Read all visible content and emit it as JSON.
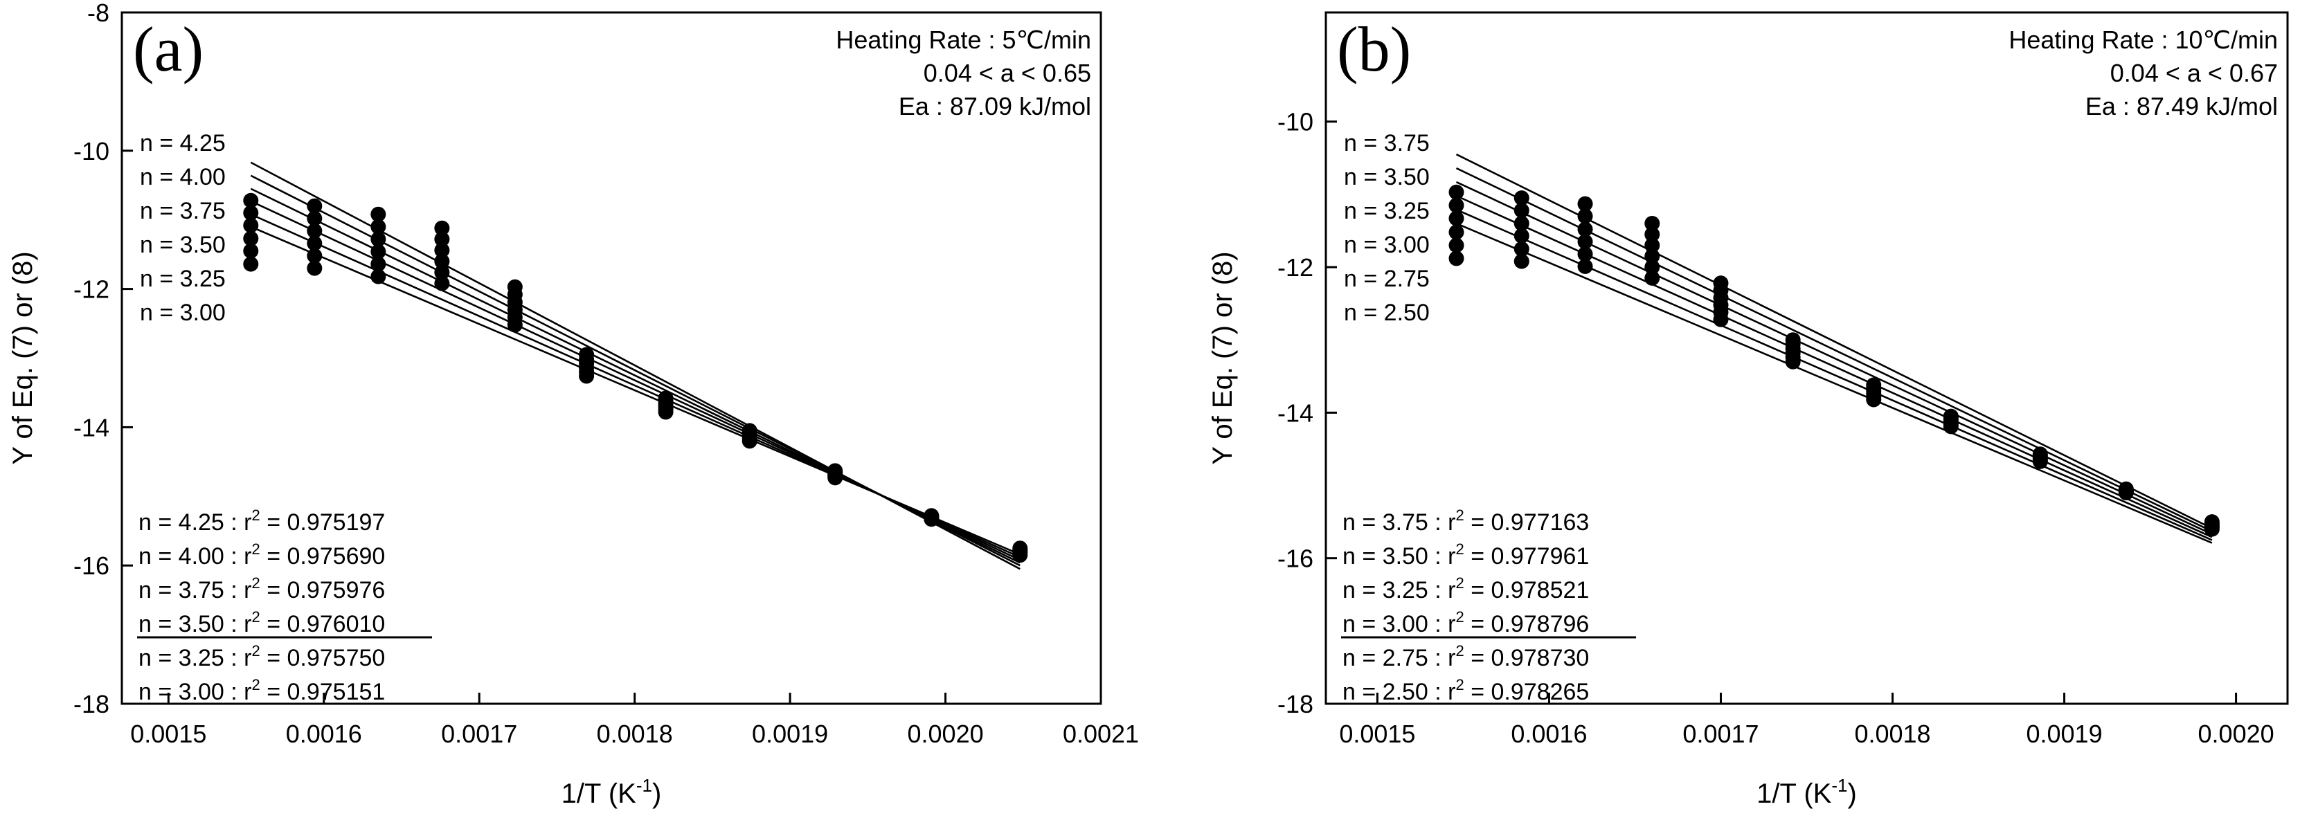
{
  "chart_data": [
    {
      "type": "scatter",
      "panel_label": "(a)",
      "xlabel": "1/T (K",
      "xlabel_sup": "-1",
      "xlabel_end": ")",
      "ylabel": "Y of Eq. (7) or (8)",
      "xlim": [
        0.00147,
        0.0021
      ],
      "ylim": [
        -18,
        -8
      ],
      "x_ticks": [
        0.0015,
        0.0016,
        0.0017,
        0.0018,
        0.0019,
        0.002,
        0.0021
      ],
      "x_tick_labels": [
        "0.0015",
        "0.0016",
        "0.0017",
        "0.0018",
        "0.0019",
        "0.0020",
        "0.0021"
      ],
      "y_ticks": [
        -18,
        -16,
        -14,
        -12,
        -10,
        -8
      ],
      "y_tick_labels": [
        "-18",
        "-16",
        "-14",
        "-12",
        "-10",
        "-8"
      ],
      "info": [
        "Heating Rate : 5℃/min",
        "0.04 < a < 0.65",
        "Ea : 87.09 kJ/mol"
      ],
      "legend_n": [
        "n = 4.25",
        "n = 4.00",
        "n = 3.75",
        "n = 3.50",
        "n = 3.25",
        "n = 3.00"
      ],
      "fit_prefix": [
        "n = 4.25 : r",
        "n = 4.00 : r",
        "n = 3.75 : r",
        "n = 3.50 : r",
        "n = 3.25 : r",
        "n = 3.00 : r"
      ],
      "fit_suffix": [
        " = 0.975197",
        " = 0.975690",
        " = 0.975976",
        " = 0.976010",
        " = 0.975750",
        " = 0.975151"
      ],
      "fit_sup": "2",
      "best_fit_index": 3,
      "series_x": [
        0.001553,
        0.001594,
        0.001635,
        0.001676,
        0.001723,
        0.001769,
        0.00182,
        0.001874,
        0.001929,
        0.001991,
        0.002048
      ],
      "series": [
        {
          "name": "n = 4.25",
          "y": [
            -10.72,
            -10.8,
            -10.92,
            -11.12,
            -11.97,
            -12.95,
            -13.58,
            -14.05,
            -14.63,
            -15.28,
            -15.75
          ],
          "line_y": [
            -10.17,
            -16.05
          ]
        },
        {
          "name": "n = 4.00",
          "y": [
            -10.9,
            -10.98,
            -11.1,
            -11.28,
            -12.08,
            -13.02,
            -13.62,
            -14.08,
            -14.65,
            -15.29,
            -15.77
          ],
          "line_y": [
            -10.36,
            -16.0
          ]
        },
        {
          "name": "n = 3.75",
          "y": [
            -11.08,
            -11.16,
            -11.28,
            -11.44,
            -12.19,
            -13.08,
            -13.66,
            -14.11,
            -14.67,
            -15.3,
            -15.79
          ],
          "line_y": [
            -10.55,
            -15.96
          ]
        },
        {
          "name": "n = 3.50",
          "y": [
            -11.27,
            -11.34,
            -11.46,
            -11.6,
            -12.3,
            -13.14,
            -13.7,
            -14.14,
            -14.69,
            -15.31,
            -15.81
          ],
          "line_y": [
            -10.73,
            -15.92
          ]
        },
        {
          "name": "n = 3.25",
          "y": [
            -11.45,
            -11.52,
            -11.64,
            -11.76,
            -12.41,
            -13.2,
            -13.74,
            -14.17,
            -14.71,
            -15.32,
            -15.83
          ],
          "line_y": [
            -10.92,
            -15.88
          ]
        },
        {
          "name": "n = 3.00",
          "y": [
            -11.64,
            -11.7,
            -11.82,
            -11.92,
            -12.52,
            -13.26,
            -13.78,
            -14.2,
            -14.73,
            -15.33,
            -15.85
          ],
          "line_y": [
            -11.1,
            -15.84
          ]
        }
      ]
    },
    {
      "type": "scatter",
      "panel_label": "(b)",
      "xlabel": "1/T (K",
      "xlabel_sup": "-1",
      "xlabel_end": ")",
      "ylabel": "Y of Eq. (7) or (8)",
      "xlim": [
        0.00147,
        0.00203
      ],
      "ylim": [
        -18,
        -8.5
      ],
      "x_ticks": [
        0.0015,
        0.0016,
        0.0017,
        0.0018,
        0.0019,
        0.002
      ],
      "x_tick_labels": [
        "0.0015",
        "0.0016",
        "0.0017",
        "0.0018",
        "0.0019",
        "0.0020"
      ],
      "y_ticks": [
        -18,
        -16,
        -14,
        -12,
        -10
      ],
      "y_tick_labels": [
        "-18",
        "-16",
        "-14",
        "-12",
        "-10"
      ],
      "info": [
        "Heating Rate : 10℃/min",
        "0.04 < a < 0.67",
        "Ea : 87.49 kJ/mol"
      ],
      "legend_n": [
        "n = 3.75",
        "n = 3.50",
        "n = 3.25",
        "n = 3.00",
        "n = 2.75",
        "n = 2.50"
      ],
      "fit_prefix": [
        "n = 3.75 : r",
        "n = 3.50 : r",
        "n = 3.25 : r",
        "n = 3.00 : r",
        "n = 2.75 : r",
        "n = 2.50 : r"
      ],
      "fit_suffix": [
        " = 0.977163",
        " = 0.977961",
        " = 0.978521",
        " = 0.978796",
        " = 0.978730",
        " = 0.978265"
      ],
      "fit_sup": "2",
      "best_fit_index": 3,
      "series_x": [
        0.001546,
        0.001584,
        0.001621,
        0.00166,
        0.0017,
        0.001742,
        0.001789,
        0.001834,
        0.001886,
        0.001936,
        0.001986
      ],
      "series": [
        {
          "name": "n = 3.75",
          "y": [
            -10.97,
            -11.05,
            -11.13,
            -11.4,
            -12.22,
            -13.0,
            -13.62,
            -14.05,
            -14.57,
            -15.05,
            -15.5
          ],
          "line_y": [
            -10.45,
            -15.59
          ]
        },
        {
          "name": "n = 3.50",
          "y": [
            -11.15,
            -11.22,
            -11.3,
            -11.55,
            -12.32,
            -13.06,
            -13.66,
            -14.07,
            -14.59,
            -15.06,
            -15.52
          ],
          "line_y": [
            -10.64,
            -15.63
          ]
        },
        {
          "name": "n = 3.25",
          "y": [
            -11.33,
            -11.4,
            -11.48,
            -11.7,
            -12.42,
            -13.12,
            -13.7,
            -14.1,
            -14.61,
            -15.07,
            -15.54
          ],
          "line_y": [
            -10.83,
            -15.67
          ]
        },
        {
          "name": "n = 3.00",
          "y": [
            -11.52,
            -11.57,
            -11.65,
            -11.85,
            -12.52,
            -13.18,
            -13.74,
            -14.13,
            -14.63,
            -15.08,
            -15.56
          ],
          "line_y": [
            -11.02,
            -15.71
          ]
        },
        {
          "name": "n = 2.75",
          "y": [
            -11.7,
            -11.75,
            -11.82,
            -12.0,
            -12.62,
            -13.24,
            -13.78,
            -14.16,
            -14.65,
            -15.09,
            -15.58
          ],
          "line_y": [
            -11.21,
            -15.75
          ]
        },
        {
          "name": "n = 2.50",
          "y": [
            -11.88,
            -11.92,
            -11.99,
            -12.15,
            -12.72,
            -13.3,
            -13.82,
            -14.19,
            -14.67,
            -15.1,
            -15.6
          ],
          "line_y": [
            -11.4,
            -15.79
          ]
        }
      ]
    }
  ]
}
